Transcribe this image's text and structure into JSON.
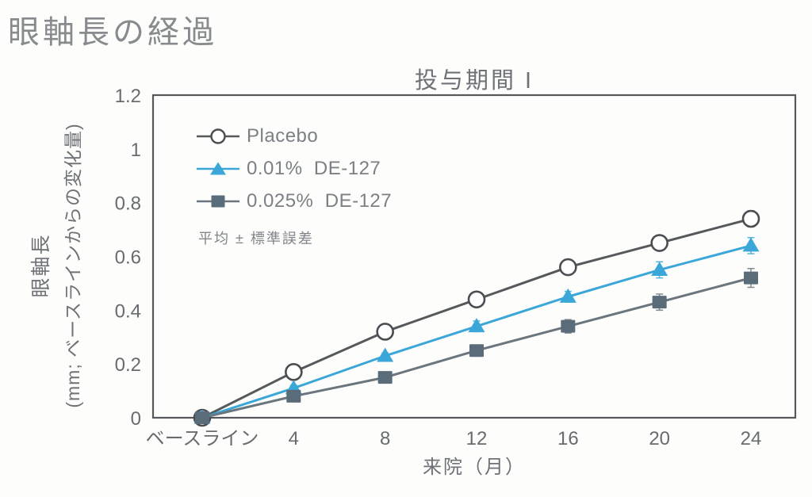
{
  "page": {
    "title": "眼軸長の経過"
  },
  "chart_data": {
    "type": "line",
    "title": "投与期間 I",
    "xlabel": "来院（月）",
    "ylabel": "眼軸長 (mm; ベースラインからの変化量)",
    "ylabel_line1": "眼軸長",
    "ylabel_line2": "(mm; ベースラインからの変化量)",
    "note": "平均 ± 標準誤差",
    "categories": [
      "ベースライン",
      "4",
      "8",
      "12",
      "16",
      "20",
      "24"
    ],
    "ylim": [
      0,
      1.2
    ],
    "yticks": [
      0,
      0.2,
      0.4,
      0.6,
      0.8,
      1,
      1.2
    ],
    "ytick_labels": [
      "0",
      "0.2",
      "0.4",
      "0.6",
      "0.8",
      "1",
      "1.2"
    ],
    "grid": false,
    "legend_position": "inside-top-left",
    "frame_color": "#55595c",
    "series": [
      {
        "name": "Placebo",
        "marker": "circle-open",
        "color": "#55595c",
        "marker_color": "#ffffff",
        "marker_stroke": "#4a4e52",
        "values": [
          0,
          0.17,
          0.32,
          0.44,
          0.56,
          0.65,
          0.74
        ],
        "errors": [
          0,
          0.01,
          0.01,
          0.02,
          0.02,
          0.02,
          0.03
        ]
      },
      {
        "name": "0.01%  DE-127",
        "marker": "triangle",
        "color": "#3ba7d9",
        "marker_color": "#3ba7d9",
        "values": [
          0,
          0.11,
          0.23,
          0.34,
          0.45,
          0.55,
          0.64
        ],
        "errors": [
          0,
          0.01,
          0.01,
          0.02,
          0.02,
          0.03,
          0.03
        ]
      },
      {
        "name": "0.025%  DE-127",
        "marker": "square",
        "color": "#6b757d",
        "marker_color": "#5a6c7a",
        "values": [
          0,
          0.08,
          0.15,
          0.25,
          0.34,
          0.43,
          0.52
        ],
        "errors": [
          0,
          0.01,
          0.015,
          0.02,
          0.025,
          0.03,
          0.035
        ]
      }
    ]
  }
}
